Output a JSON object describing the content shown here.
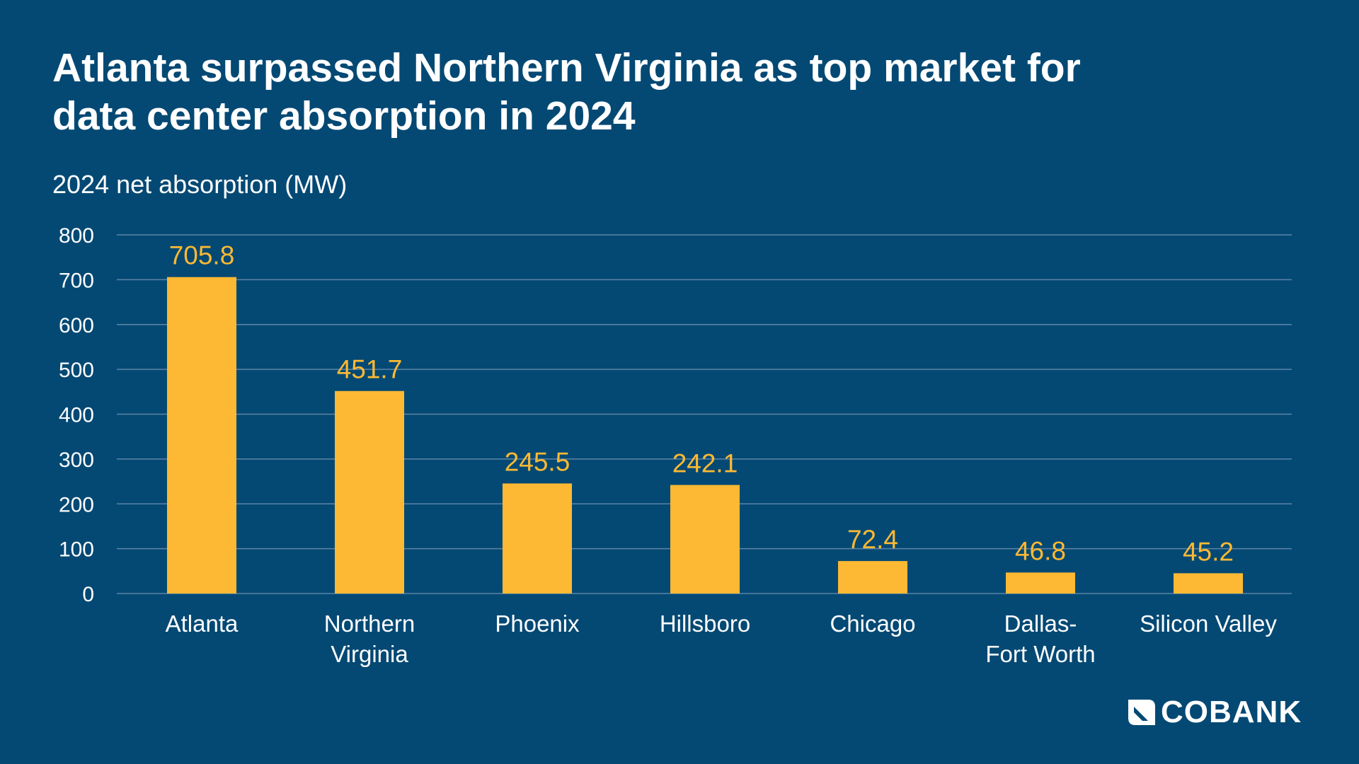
{
  "title_lines": [
    "Atlanta surpassed Northern Virginia as top market for",
    "data center absorption in 2024"
  ],
  "logo_text": "COBANK",
  "colors": {
    "background": "#044974",
    "bar": "#FDB933",
    "data_label": "#FDB933",
    "gridline": "#5D84A6",
    "text": "#FFFFFF"
  },
  "chart_data": {
    "type": "bar",
    "title": "",
    "subtitle": "2024 net absorption (MW)",
    "xlabel": "",
    "ylabel": "",
    "categories": [
      [
        "Atlanta"
      ],
      [
        "Northern",
        "Virginia"
      ],
      [
        "Phoenix"
      ],
      [
        "Hillsboro"
      ],
      [
        "Chicago"
      ],
      [
        "Dallas-",
        "Fort Worth"
      ],
      [
        "Silicon Valley"
      ]
    ],
    "values": [
      705.8,
      451.7,
      245.5,
      242.1,
      72.4,
      46.8,
      45.2
    ],
    "value_labels": [
      "705.8",
      "451.7",
      "245.5",
      "242.1",
      "72.4",
      "46.8",
      "45.2"
    ],
    "ylim": [
      0,
      800
    ],
    "yticks": [
      0,
      100,
      200,
      300,
      400,
      500,
      600,
      700,
      800
    ],
    "grid": true,
    "legend": "none"
  }
}
